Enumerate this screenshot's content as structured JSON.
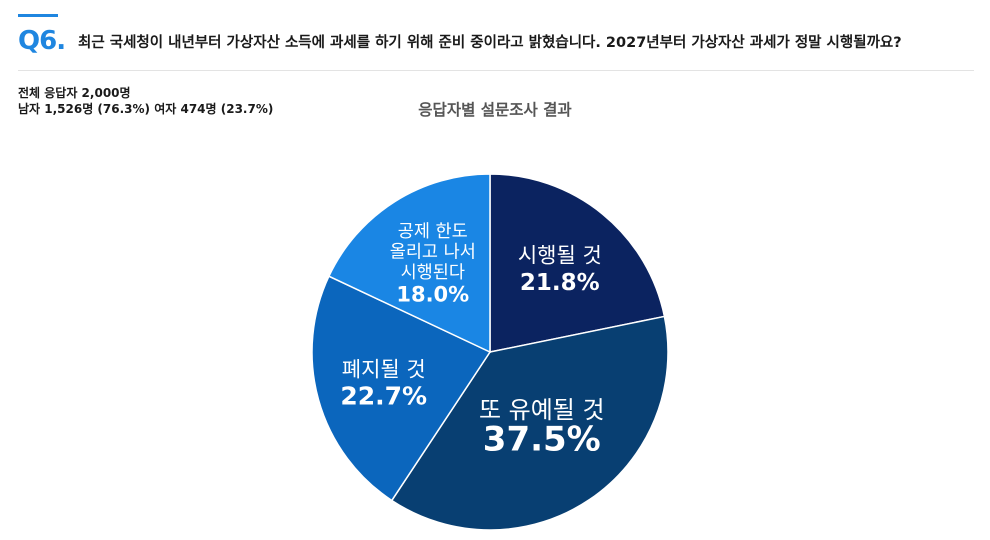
{
  "header": {
    "q_number": "Q6.",
    "question": "최근 국세청이 내년부터 가상자산 소득에 과세를 하기 위해 준비 중이라고 밝혔습니다. 2027년부터 가상자산 과세가 정말 시행될까요?"
  },
  "respondents": {
    "total": "전체 응답자 2,000명",
    "breakdown": "남자 1,526명 (76.3%) 여자 474명 (23.7%)"
  },
  "colors": {
    "accent": "#1f86e0",
    "slice_1": "#0b2360",
    "slice_2": "#083f72",
    "slice_3": "#0b66bd",
    "slice_4": "#1a86e4"
  },
  "chart_data": {
    "type": "pie",
    "title": "응답자별 설문조사 결과",
    "slices": [
      {
        "label": [
          "시행될 것"
        ],
        "value": 21.8,
        "value_label": "21.8%",
        "color": "#0b2360"
      },
      {
        "label": [
          "또 유예될 것"
        ],
        "value": 37.5,
        "value_label": "37.5%",
        "color": "#083f72"
      },
      {
        "label": [
          "폐지될 것"
        ],
        "value": 22.7,
        "value_label": "22.7%",
        "color": "#0b66bd"
      },
      {
        "label": [
          "공제 한도",
          "올리고 나서",
          "시행된다"
        ],
        "value": 18.0,
        "value_label": "18.0%",
        "color": "#1a86e4"
      }
    ]
  }
}
